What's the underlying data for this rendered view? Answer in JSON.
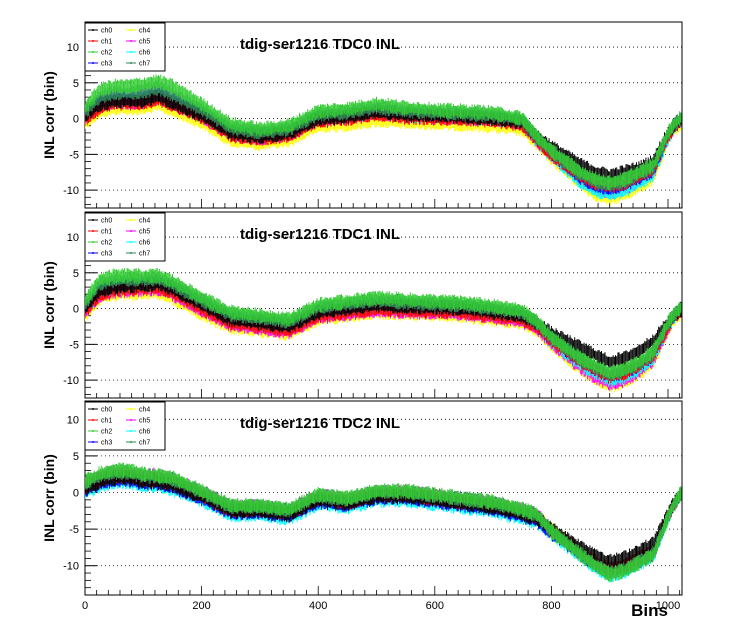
{
  "chart_data": [
    {
      "type": "line",
      "title": "tdig-ser1216 TDC0 INL",
      "ylabel": "INL corr (bin)",
      "xlabel": "",
      "xlim": [
        0,
        1024
      ],
      "ylim": [
        -12.5,
        13.5
      ],
      "yticks": [
        -10,
        -5,
        0,
        5,
        10
      ],
      "xticks": [],
      "grid": "horizontal dotted",
      "legend": "top-left",
      "x": [
        0,
        25,
        50,
        75,
        100,
        125,
        150,
        200,
        250,
        300,
        350,
        400,
        450,
        500,
        550,
        600,
        650,
        700,
        750,
        775,
        800,
        850,
        875,
        900,
        925,
        950,
        975,
        1000,
        1010,
        1024
      ],
      "series": [
        {
          "name": "ch0",
          "values": [
            0.5,
            2,
            2.5,
            2.5,
            2.5,
            3.2,
            2.2,
            0.5,
            -2,
            -2.5,
            -2,
            0,
            0.3,
            1,
            0.5,
            0.4,
            0.3,
            0,
            -0.5,
            -2.5,
            -4,
            -6.5,
            -7.5,
            -8,
            -7.5,
            -7,
            -6,
            -2,
            -1,
            0
          ]
        },
        {
          "name": "ch1",
          "values": [
            0,
            1.5,
            2.2,
            2.2,
            2.2,
            2.8,
            2,
            0.3,
            -2.3,
            -2.8,
            -2.3,
            -0.3,
            0,
            0.7,
            0.2,
            0.1,
            0,
            -0.2,
            -0.8,
            -3,
            -5,
            -8,
            -9,
            -9.5,
            -9,
            -8,
            -7,
            -2.5,
            -1.2,
            0
          ]
        },
        {
          "name": "ch2",
          "values": [
            1.5,
            4,
            4.5,
            4.5,
            4.8,
            5.2,
            4.5,
            2,
            -0.8,
            -1.5,
            -1,
            1,
            1.3,
            2,
            1.5,
            1.2,
            1,
            0.8,
            0,
            -2.5,
            -4.5,
            -7.5,
            -8.5,
            -9,
            -8.5,
            -7.5,
            -6.5,
            -2,
            -0.8,
            0.3
          ]
        },
        {
          "name": "ch3",
          "values": [
            0.8,
            2.3,
            2.8,
            2.8,
            2.8,
            3.5,
            2.5,
            0.8,
            -1.8,
            -2.3,
            -1.8,
            0.2,
            0.5,
            1.2,
            0.7,
            0.5,
            0.4,
            0.2,
            -0.4,
            -2.8,
            -4.8,
            -8.2,
            -9.3,
            -9.8,
            -9.3,
            -8.3,
            -7.3,
            -2.3,
            -1,
            0
          ]
        },
        {
          "name": "ch4",
          "values": [
            -0.5,
            1,
            1.5,
            1.5,
            1.5,
            2,
            1.2,
            -0.5,
            -3,
            -3.5,
            -3,
            -1,
            -0.8,
            -0.2,
            -0.5,
            -0.6,
            -0.8,
            -1,
            -1.5,
            -3.5,
            -5.5,
            -9,
            -10.5,
            -11.2,
            -10.5,
            -9.5,
            -8.3,
            -3,
            -1.5,
            -0.5
          ]
        },
        {
          "name": "ch5",
          "values": [
            0.3,
            1.8,
            2.3,
            2.3,
            2.3,
            3,
            2.1,
            0.4,
            -2.2,
            -2.7,
            -2.2,
            -0.2,
            0.1,
            0.8,
            0.3,
            0.2,
            0.1,
            -0.1,
            -0.7,
            -3,
            -5,
            -8.5,
            -9.8,
            -10.3,
            -9.8,
            -8.7,
            -7.6,
            -2.6,
            -1.2,
            0
          ]
        },
        {
          "name": "ch6",
          "values": [
            0.6,
            2.1,
            2.6,
            2.6,
            2.6,
            3.3,
            2.3,
            0.6,
            -2,
            -2.5,
            -2,
            0,
            0.3,
            1,
            0.5,
            0.3,
            0.2,
            0,
            -0.6,
            -3,
            -5.2,
            -8.8,
            -10,
            -10.6,
            -10,
            -9,
            -7.8,
            -2.8,
            -1.2,
            0
          ]
        },
        {
          "name": "ch7",
          "values": [
            1,
            3,
            3.6,
            3.6,
            3.8,
            4.3,
            3.4,
            1.3,
            -1.3,
            -1.9,
            -1.4,
            0.6,
            0.9,
            1.6,
            1.1,
            0.9,
            0.7,
            0.5,
            -0.2,
            -2.6,
            -4.6,
            -7.8,
            -8.8,
            -9.3,
            -8.8,
            -7.8,
            -6.8,
            -2.2,
            -0.9,
            0.2
          ]
        }
      ]
    },
    {
      "type": "line",
      "title": "tdig-ser1216 TDC1 INL",
      "ylabel": "INL corr (bin)",
      "xlabel": "",
      "xlim": [
        0,
        1024
      ],
      "ylim": [
        -12.5,
        13.5
      ],
      "yticks": [
        -10,
        -5,
        0,
        5,
        10
      ],
      "xticks": [],
      "grid": "horizontal dotted",
      "legend": "top-left",
      "x": [
        0,
        25,
        50,
        75,
        100,
        125,
        150,
        200,
        250,
        300,
        350,
        400,
        450,
        500,
        550,
        600,
        650,
        700,
        750,
        775,
        800,
        850,
        875,
        900,
        925,
        950,
        975,
        1000,
        1010,
        1024
      ],
      "series": [
        {
          "name": "ch0",
          "values": [
            0,
            2.5,
            3,
            3.2,
            3.3,
            3.5,
            2.8,
            0.5,
            -1.5,
            -2,
            -2.5,
            -0.5,
            0,
            0.5,
            0.3,
            0.2,
            0,
            -0.5,
            -1,
            -2,
            -3.5,
            -5.5,
            -6.5,
            -7.5,
            -7,
            -6,
            -4.5,
            -2,
            -1,
            0
          ]
        },
        {
          "name": "ch1",
          "values": [
            -0.3,
            2,
            2.6,
            2.8,
            2.9,
            3,
            2.3,
            0,
            -2,
            -2.5,
            -3,
            -1,
            -0.5,
            0,
            -0.2,
            -0.3,
            -0.5,
            -1,
            -1.5,
            -2.5,
            -4.5,
            -7.5,
            -8.5,
            -9.5,
            -9,
            -8,
            -6.5,
            -2.5,
            -1.2,
            0
          ]
        },
        {
          "name": "ch2",
          "values": [
            1,
            4,
            4.5,
            4.6,
            4.5,
            4.6,
            3.8,
            1.5,
            -0.5,
            -1,
            -1.5,
            0.5,
            1,
            1.5,
            1.2,
            1,
            0.8,
            0.3,
            -0.3,
            -1.8,
            -4,
            -7,
            -8,
            -9,
            -8.5,
            -7.5,
            -6,
            -2,
            -0.8,
            0.3
          ]
        },
        {
          "name": "ch3",
          "values": [
            0.2,
            2.8,
            3.3,
            3.5,
            3.6,
            3.8,
            3,
            0.8,
            -1.3,
            -1.8,
            -2.3,
            -0.3,
            0.2,
            0.7,
            0.5,
            0.3,
            0.2,
            -0.3,
            -0.8,
            -2.2,
            -4.3,
            -7.3,
            -8.4,
            -9.4,
            -8.9,
            -7.9,
            -6.4,
            -2.3,
            -1,
            0
          ]
        },
        {
          "name": "ch4",
          "values": [
            -1,
            1.5,
            2,
            2.2,
            2.2,
            2.3,
            1.5,
            -0.7,
            -2.6,
            -3,
            -3.5,
            -1.5,
            -1,
            -0.5,
            -0.7,
            -0.8,
            -1,
            -1.5,
            -2,
            -3,
            -5,
            -8.5,
            -9.7,
            -10.8,
            -10.2,
            -9,
            -7.5,
            -3,
            -1.5,
            -0.5
          ]
        },
        {
          "name": "ch5",
          "values": [
            -0.5,
            1.8,
            2.4,
            2.6,
            2.7,
            2.8,
            2,
            -0.2,
            -2.2,
            -2.7,
            -3.2,
            -1.2,
            -0.7,
            -0.2,
            -0.4,
            -0.5,
            -0.7,
            -1.2,
            -1.7,
            -2.7,
            -4.8,
            -8.2,
            -9.5,
            -10.5,
            -10,
            -8.8,
            -7.2,
            -2.8,
            -1.3,
            0
          ]
        },
        {
          "name": "ch6",
          "values": [
            0,
            2.4,
            2.9,
            3.1,
            3.2,
            3.4,
            2.6,
            0.4,
            -1.6,
            -2.1,
            -2.6,
            -0.6,
            -0.1,
            0.4,
            0.2,
            0.1,
            -0.1,
            -0.6,
            -1.1,
            -2.4,
            -4.6,
            -7.8,
            -9,
            -10,
            -9.5,
            -8.4,
            -6.9,
            -2.6,
            -1.2,
            0
          ]
        },
        {
          "name": "ch7",
          "values": [
            0.6,
            3.5,
            4,
            4.1,
            4.1,
            4.2,
            3.4,
            1.2,
            -0.8,
            -1.3,
            -1.8,
            0.2,
            0.7,
            1.2,
            0.9,
            0.7,
            0.5,
            0,
            -0.5,
            -2,
            -4.1,
            -7.1,
            -8.2,
            -9.2,
            -8.7,
            -7.7,
            -6.2,
            -2.1,
            -0.9,
            0.2
          ]
        }
      ]
    },
    {
      "type": "line",
      "title": "tdig-ser1216 TDC2 INL",
      "ylabel": "INL corr (bin)",
      "xlabel": "Bins",
      "xlim": [
        0,
        1024
      ],
      "ylim": [
        -14,
        12.5
      ],
      "yticks": [
        -10,
        -5,
        0,
        5,
        10
      ],
      "xticks": [
        0,
        200,
        400,
        600,
        800,
        1000
      ],
      "grid": "horizontal dotted",
      "legend": "top-left",
      "x": [
        0,
        25,
        50,
        75,
        100,
        125,
        150,
        200,
        250,
        300,
        350,
        400,
        450,
        500,
        550,
        600,
        650,
        700,
        750,
        775,
        800,
        850,
        875,
        900,
        925,
        950,
        975,
        1000,
        1010,
        1024
      ],
      "series": [
        {
          "name": "ch0",
          "values": [
            0.5,
            1.5,
            2,
            2,
            1.5,
            1.5,
            1,
            -0.5,
            -2.5,
            -2.5,
            -3,
            -1,
            -1.5,
            -0.5,
            -0.5,
            -1,
            -1.5,
            -2,
            -3,
            -3.5,
            -5,
            -7.5,
            -8.5,
            -9.5,
            -9,
            -8,
            -7,
            -3,
            -1.5,
            0
          ]
        },
        {
          "name": "ch1",
          "values": [
            0.8,
            1.8,
            2.3,
            2.3,
            1.8,
            1.8,
            1.3,
            -0.3,
            -2.3,
            -2.3,
            -2.8,
            -0.8,
            -1.3,
            -0.3,
            -0.3,
            -0.8,
            -1.3,
            -1.8,
            -2.8,
            -3.3,
            -5.2,
            -8,
            -9.5,
            -10.5,
            -10,
            -9,
            -8,
            -3.2,
            -1.6,
            0
          ]
        },
        {
          "name": "ch2",
          "values": [
            1.5,
            2.5,
            3,
            3,
            2.5,
            2.3,
            2,
            0.2,
            -1.8,
            -1.8,
            -2.3,
            -0.3,
            -0.8,
            0.2,
            0.2,
            -0.3,
            -0.8,
            -1.3,
            -2.3,
            -3,
            -5.3,
            -8.5,
            -10,
            -11.2,
            -10.7,
            -9.6,
            -8.5,
            -3.4,
            -1.6,
            0.2
          ]
        },
        {
          "name": "ch3",
          "values": [
            0.3,
            1.3,
            1.8,
            1.8,
            1.3,
            1.3,
            0.8,
            -0.7,
            -2.7,
            -2.7,
            -3.2,
            -1.2,
            -1.7,
            -0.7,
            -0.7,
            -1.2,
            -1.7,
            -2.2,
            -3.2,
            -3.7,
            -5.5,
            -8.3,
            -9.8,
            -10.8,
            -10.3,
            -9.3,
            -8.2,
            -3.3,
            -1.6,
            0
          ]
        },
        {
          "name": "ch4",
          "values": [
            1,
            2,
            2.5,
            2.5,
            2,
            2,
            1.5,
            -0.2,
            -2.2,
            -2.2,
            -2.7,
            -0.7,
            -1.2,
            -0.2,
            -0.2,
            -0.7,
            -1.2,
            -1.7,
            -2.7,
            -3.2,
            -5.1,
            -8.2,
            -9.7,
            -10.7,
            -10.2,
            -9.2,
            -8.1,
            -3.2,
            -1.5,
            0
          ]
        },
        {
          "name": "ch5",
          "values": [
            1.2,
            2.2,
            2.7,
            2.7,
            2.2,
            2.2,
            1.7,
            0,
            -2,
            -2,
            -2.5,
            -0.5,
            -1,
            0,
            0,
            -0.5,
            -1,
            -1.5,
            -2.5,
            -3.1,
            -5.1,
            -8.3,
            -9.9,
            -10.9,
            -10.4,
            -9.4,
            -8.3,
            -3.3,
            -1.6,
            0
          ]
        },
        {
          "name": "ch6",
          "values": [
            0,
            1,
            1.5,
            1.5,
            1,
            1,
            0.5,
            -1,
            -3,
            -3,
            -3.5,
            -1.5,
            -2,
            -1,
            -1,
            -1.5,
            -2,
            -2.5,
            -3.5,
            -4,
            -5.6,
            -8.7,
            -10.2,
            -11.3,
            -10.8,
            -9.7,
            -8.6,
            -3.5,
            -1.7,
            0
          ]
        },
        {
          "name": "ch7",
          "values": [
            1.3,
            2.3,
            2.8,
            2.8,
            2.3,
            2.2,
            1.8,
            0.1,
            -1.9,
            -1.9,
            -2.4,
            -0.4,
            -0.9,
            0.1,
            0.1,
            -0.4,
            -0.9,
            -1.4,
            -2.4,
            -3,
            -5.2,
            -8.4,
            -9.9,
            -11,
            -10.5,
            -9.5,
            -8.4,
            -3.3,
            -1.6,
            0.1
          ]
        }
      ]
    }
  ],
  "colors": {
    "ch0": "#000000",
    "ch1": "#ff0000",
    "ch2": "#33cc33",
    "ch3": "#0000ff",
    "ch4": "#ffff00",
    "ch5": "#ff00ff",
    "ch6": "#00ffff",
    "ch7": "#2e8b57"
  },
  "series_draw_order": [
    "ch4",
    "ch5",
    "ch6",
    "ch3",
    "ch1",
    "ch0",
    "ch7",
    "ch2"
  ]
}
